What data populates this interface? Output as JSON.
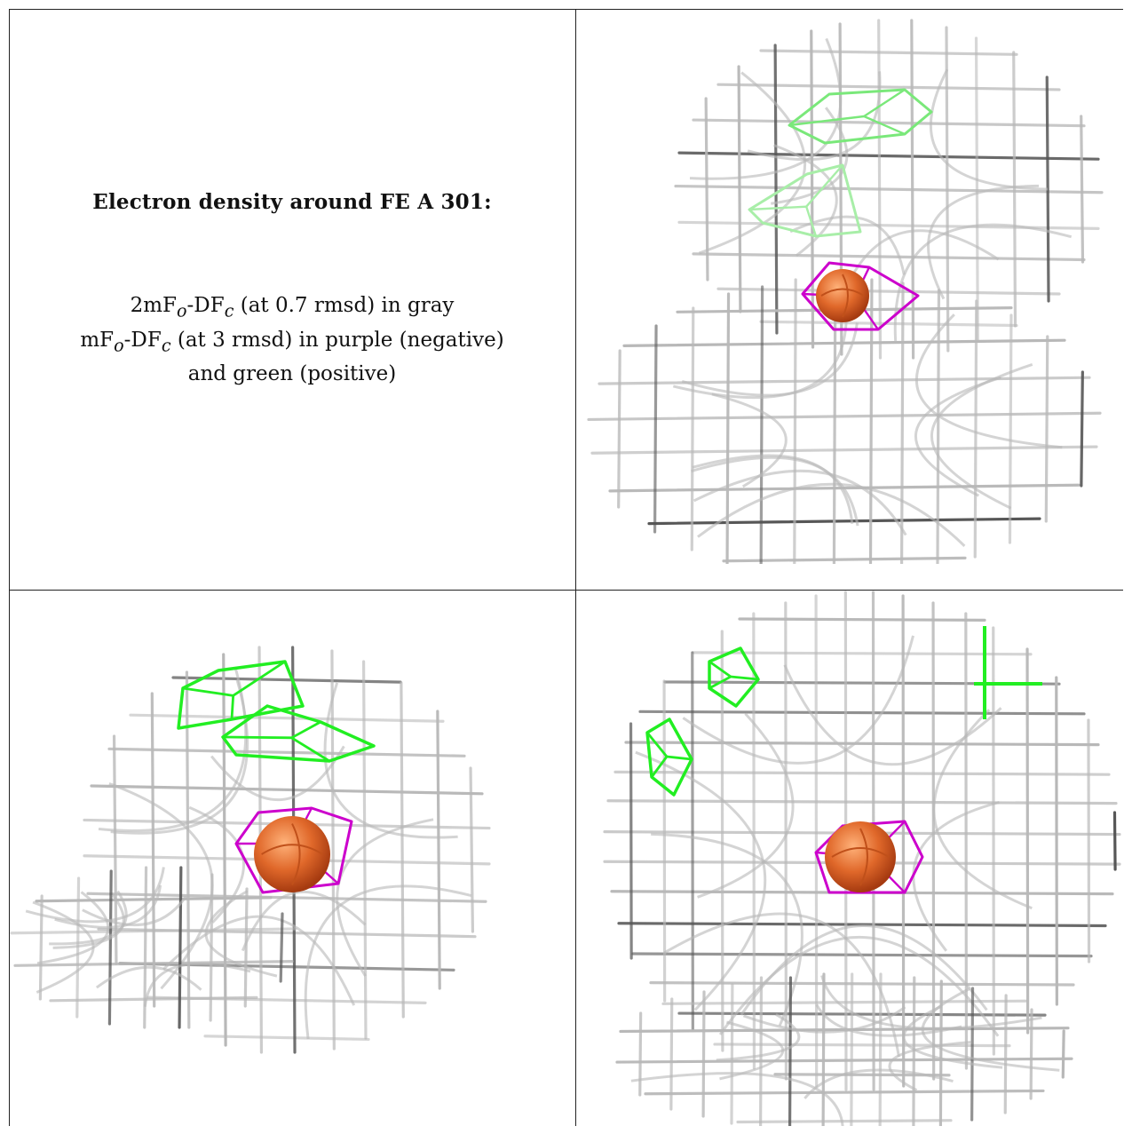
{
  "caption": {
    "title": "Electron density around FE A 301:",
    "line1": "2mFₒ-DF꜀ (at 0.7 rmsd) in gray",
    "line1_parts": {
      "a": "2mF",
      "sub_o": "o",
      "b": "-DF",
      "sub_c": "c",
      "c": " (at 0.7 rmsd) in gray"
    },
    "line2_parts": {
      "a": "mF",
      "sub_o": "o",
      "b": "-DF",
      "sub_c": "c",
      "c": " (at 3 rmsd) in purple (negative)"
    },
    "line3": "and green (positive)"
  },
  "panels": [
    {
      "id": "top-right",
      "atom": "FE A 301"
    },
    {
      "id": "bottom-left",
      "atom": "FE A 301"
    },
    {
      "id": "bottom-right",
      "atom": "FE A 301"
    }
  ],
  "colors": {
    "mesh_gray": "#b8b8b8",
    "mesh_dark": "#555555",
    "negative": "#cc00cc",
    "positive": "#22ee22",
    "atom": "#e0682a"
  }
}
